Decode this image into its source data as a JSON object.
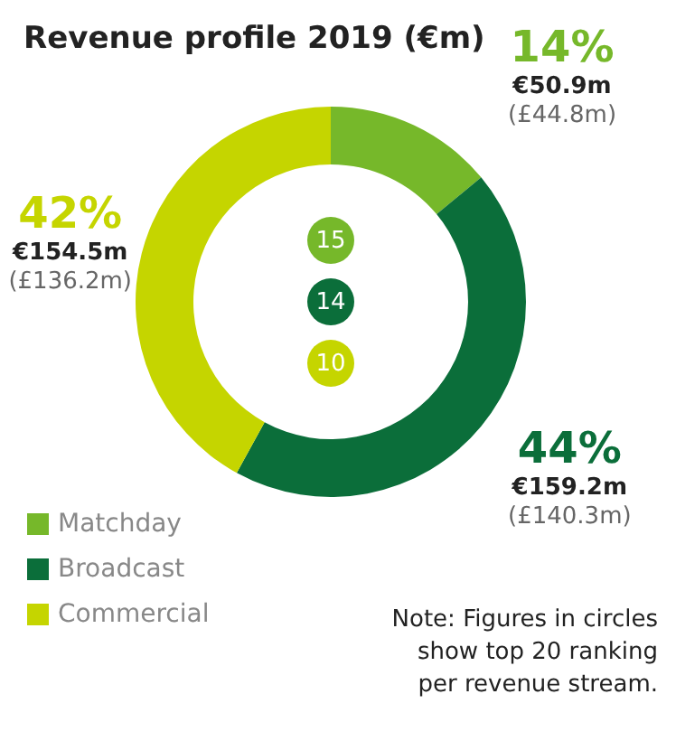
{
  "chart_data": {
    "type": "donut",
    "title": "Revenue profile 2019 (€m)",
    "categories": [
      "Matchday",
      "Broadcast",
      "Commercial"
    ],
    "values": [
      14,
      44,
      42
    ],
    "colors": [
      "#76b82a",
      "#0b6e3a",
      "#c5d500"
    ],
    "value_labels": [
      "14%\n€50.9m\n(£44.8m)",
      "44%\n€159.2m\n(£140.3m)",
      "42%\n€154.5m\n(£136.2m)"
    ],
    "annotations": [
      "15",
      "14",
      "10",
      "Note: Figures in circles\nshow top 20 ranking\nper revenue stream."
    ],
    "legend": "bottom left"
  }
}
